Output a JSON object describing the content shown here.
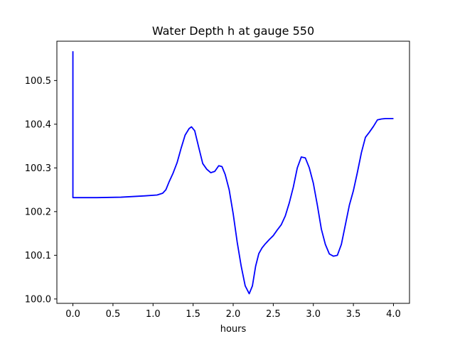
{
  "chart_data": {
    "type": "line",
    "title": "Water Depth h at gauge 550",
    "xlabel": "hours",
    "ylabel": "",
    "xlim": [
      -0.2,
      4.2
    ],
    "ylim": [
      99.99,
      100.59
    ],
    "xticks": [
      0.0,
      0.5,
      1.0,
      1.5,
      2.0,
      2.5,
      3.0,
      3.5,
      4.0
    ],
    "xtick_labels": [
      "0.0",
      "0.5",
      "1.0",
      "1.5",
      "2.0",
      "2.5",
      "3.0",
      "3.5",
      "4.0"
    ],
    "yticks": [
      100.0,
      100.1,
      100.2,
      100.3,
      100.4,
      100.5
    ],
    "ytick_labels": [
      "100.0",
      "100.1",
      "100.2",
      "100.3",
      "100.4",
      "100.5"
    ],
    "grid": false,
    "series": [
      {
        "color": "#0000ff",
        "x": [
          0.0,
          0.0,
          0.0,
          0.1,
          0.3,
          0.6,
          0.9,
          1.05,
          1.12,
          1.16,
          1.2,
          1.25,
          1.3,
          1.35,
          1.4,
          1.45,
          1.48,
          1.52,
          1.57,
          1.62,
          1.67,
          1.72,
          1.77,
          1.82,
          1.86,
          1.9,
          1.95,
          2.0,
          2.05,
          2.1,
          2.15,
          2.2,
          2.24,
          2.28,
          2.32,
          2.36,
          2.4,
          2.45,
          2.5,
          2.55,
          2.6,
          2.65,
          2.7,
          2.75,
          2.8,
          2.85,
          2.9,
          2.95,
          3.0,
          3.05,
          3.1,
          3.15,
          3.2,
          3.25,
          3.3,
          3.35,
          3.4,
          3.45,
          3.5,
          3.55,
          3.6,
          3.65,
          3.7,
          3.75,
          3.8,
          3.85,
          3.9,
          3.95,
          4.0
        ],
        "y": [
          100.567,
          100.45,
          100.232,
          100.232,
          100.232,
          100.233,
          100.236,
          100.238,
          100.242,
          100.25,
          100.268,
          100.288,
          100.312,
          100.345,
          100.375,
          100.39,
          100.394,
          100.385,
          100.347,
          100.31,
          100.297,
          100.289,
          100.292,
          100.305,
          100.303,
          100.285,
          100.25,
          100.195,
          100.13,
          100.075,
          100.03,
          100.012,
          100.03,
          100.075,
          100.104,
          100.117,
          100.126,
          100.136,
          100.145,
          100.158,
          100.17,
          100.19,
          100.22,
          100.256,
          100.3,
          100.325,
          100.323,
          100.3,
          100.265,
          100.215,
          100.16,
          100.125,
          100.103,
          100.098,
          100.1,
          100.125,
          100.17,
          100.215,
          100.248,
          100.29,
          100.335,
          100.37,
          100.382,
          100.395,
          100.41,
          100.412,
          100.413,
          100.413,
          100.413
        ]
      }
    ]
  }
}
